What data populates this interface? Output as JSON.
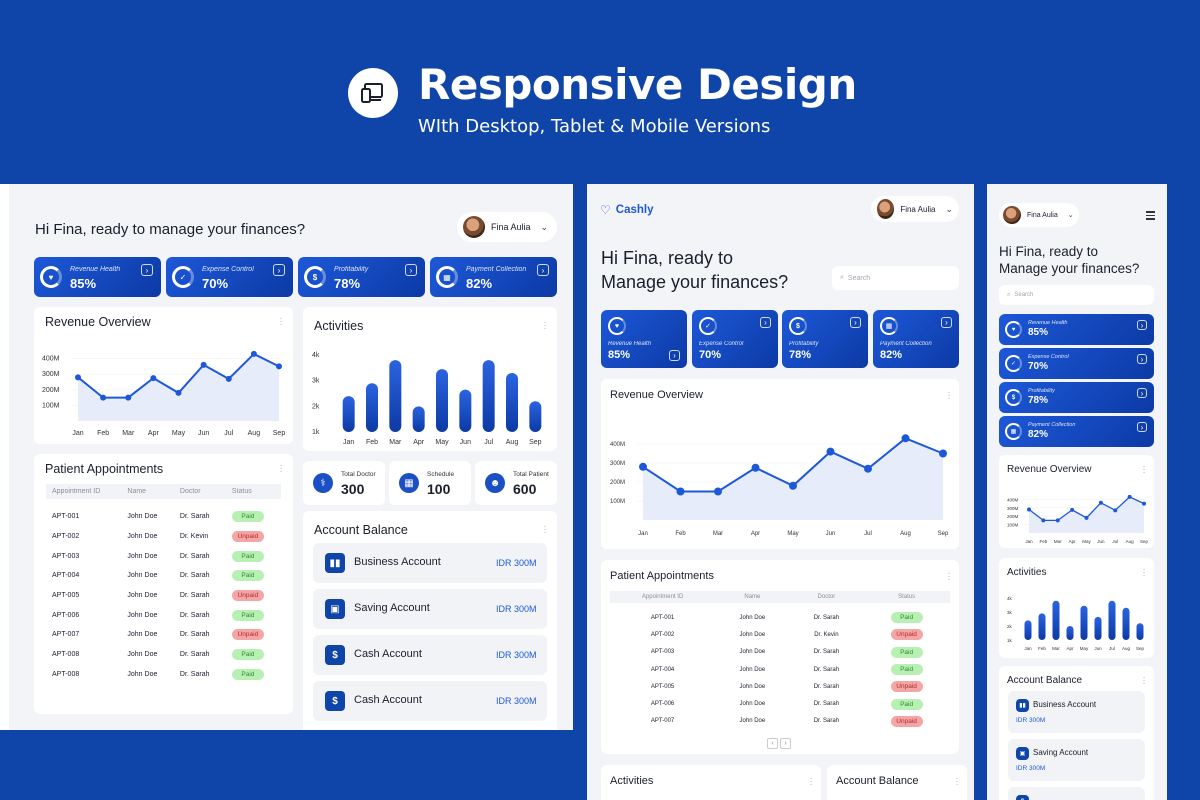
{
  "hero": {
    "title": "Responsive Design",
    "subtitle": "WIth Desktop, Tablet & Mobile Versions"
  },
  "colors": {
    "brand": "#0f45a8",
    "accent": "#1d58d8",
    "paid": "#b8f0b4",
    "unpaid": "#f4a6a6",
    "chart_fill": "#e7ecfb"
  },
  "user": {
    "name": "Fina Aulia"
  },
  "greeting": {
    "desktop": "Hi Fina, ready to manage your finances?",
    "tablet_line1": "Hi Fina, ready to",
    "tablet_line2": "Manage your finances?",
    "mobile_line1": "Hi Fina, ready to",
    "mobile_line2": "Manage your finances?"
  },
  "brand": {
    "name": "Cashly"
  },
  "search": {
    "placeholder": "Search"
  },
  "kpis": [
    {
      "label": "Revenue Health",
      "value": "85%",
      "icon": "heart-icon"
    },
    {
      "label": "Expense Control",
      "value": "70%",
      "icon": "check-icon"
    },
    {
      "label": "Profitability",
      "value": "78%",
      "icon": "money-icon"
    },
    {
      "label": "Payment Collection",
      "value": "82%",
      "icon": "calendar-icon"
    }
  ],
  "revenue": {
    "title": "Revenue Overview"
  },
  "activities": {
    "title": "Activities"
  },
  "appointments": {
    "title": "Patient Appointments",
    "columns": [
      "Appointment ID",
      "Name",
      "Doctor",
      "Status"
    ],
    "rows": [
      {
        "id": "APT-001",
        "name": "John Doe",
        "doctor": "Dr. Sarah",
        "status": "Paid"
      },
      {
        "id": "APT-002",
        "name": "John Doe",
        "doctor": "Dr. Kevin",
        "status": "Unpaid"
      },
      {
        "id": "APT-003",
        "name": "John Doe",
        "doctor": "Dr. Sarah",
        "status": "Paid"
      },
      {
        "id": "APT-004",
        "name": "John Doe",
        "doctor": "Dr. Sarah",
        "status": "Paid"
      },
      {
        "id": "APT-005",
        "name": "John Doe",
        "doctor": "Dr. Sarah",
        "status": "Unpaid"
      },
      {
        "id": "APT-006",
        "name": "John Doe",
        "doctor": "Dr. Sarah",
        "status": "Paid"
      },
      {
        "id": "APT-007",
        "name": "John Doe",
        "doctor": "Dr. Sarah",
        "status": "Unpaid"
      },
      {
        "id": "APT-008",
        "name": "John Doe",
        "doctor": "Dr. Sarah",
        "status": "Paid"
      },
      {
        "id": "APT-008",
        "name": "John Doe",
        "doctor": "Dr. Sarah",
        "status": "Paid"
      }
    ]
  },
  "stats": [
    {
      "label": "Total Doctor",
      "value": "300",
      "icon": "stethoscope-icon"
    },
    {
      "label": "Schedule",
      "value": "100",
      "icon": "calendar-icon"
    },
    {
      "label": "Total Patient",
      "value": "600",
      "icon": "patients-icon"
    }
  ],
  "accounts": {
    "title": "Account Balance",
    "items": [
      {
        "name": "Business Account",
        "value": "IDR 300M",
        "icon": "chart-icon"
      },
      {
        "name": "Saving Account",
        "value": "IDR 300M",
        "icon": "briefcase-icon"
      },
      {
        "name": "Cash Account",
        "value": "IDR 300M",
        "icon": "dollar-icon"
      },
      {
        "name": "Cash Account",
        "value": "IDR 300M",
        "icon": "dollar-icon"
      }
    ]
  },
  "chart_data": [
    {
      "type": "area",
      "title": "Revenue Overview",
      "categories": [
        "Jan",
        "Feb",
        "Mar",
        "Apr",
        "May",
        "Jun",
        "Jul",
        "Aug",
        "Sep"
      ],
      "values": [
        280,
        150,
        150,
        275,
        180,
        360,
        270,
        430,
        350
      ],
      "yticks": [
        "400M",
        "300M",
        "200M",
        "100M"
      ],
      "ylim": [
        0,
        500
      ]
    },
    {
      "type": "bar",
      "title": "Activities",
      "categories": [
        "Jan",
        "Feb",
        "Mar",
        "Apr",
        "May",
        "Jun",
        "Jul",
        "Aug",
        "Sep"
      ],
      "values": [
        2400,
        2900,
        3800,
        2000,
        3450,
        2650,
        3800,
        3300,
        2200
      ],
      "yticks": [
        "4k",
        "3k",
        "2k",
        "1k"
      ],
      "ylim": [
        1000,
        4000
      ]
    }
  ]
}
